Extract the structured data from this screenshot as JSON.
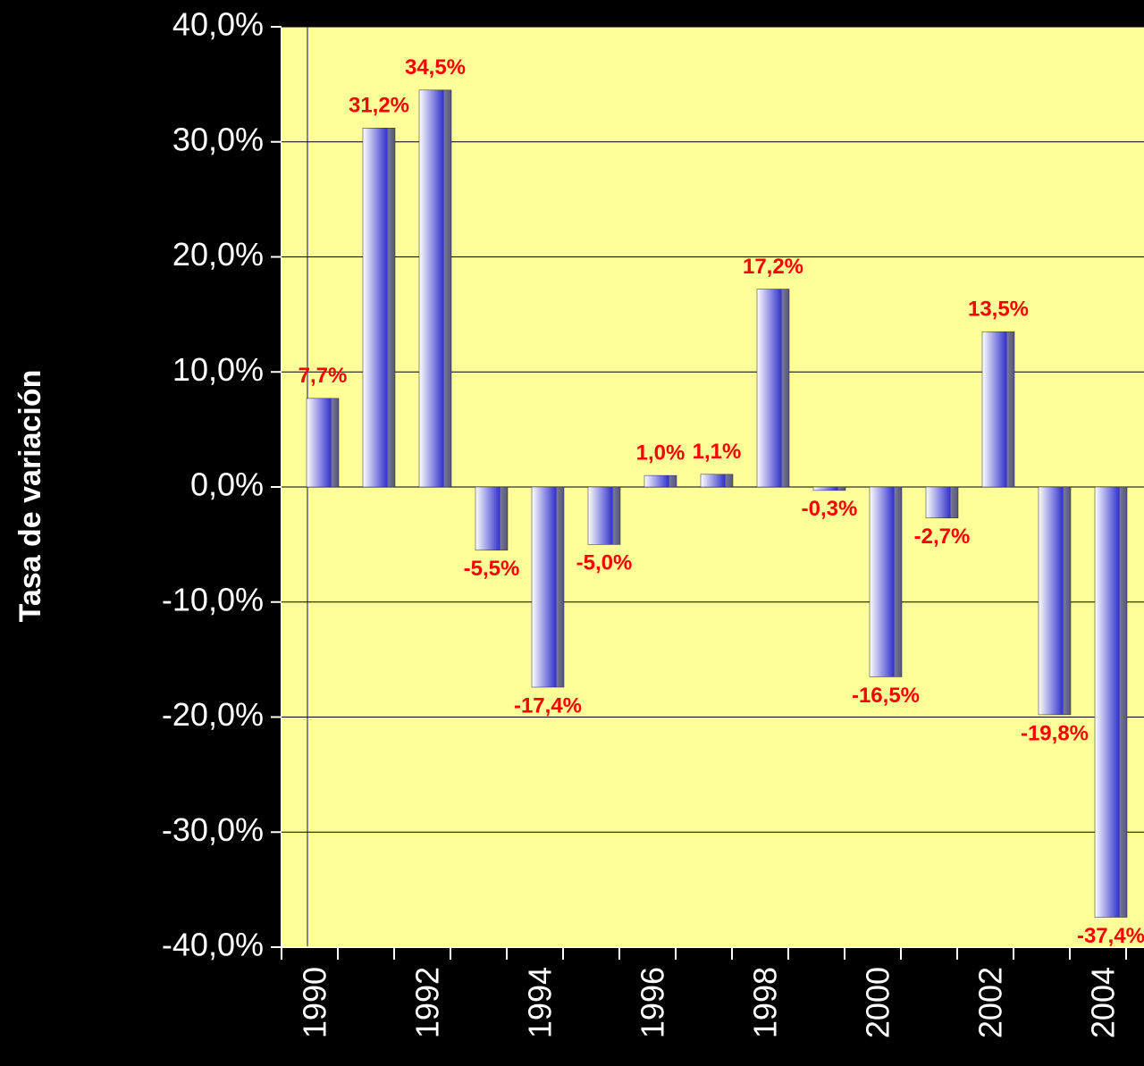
{
  "chart_data": {
    "type": "bar",
    "y_axis_label": "Tasa de variación",
    "categories": [
      "1990",
      null,
      "1992",
      null,
      "1994",
      null,
      "1996",
      null,
      "1998",
      null,
      "2000",
      null,
      "2002",
      null,
      "2004"
    ],
    "values": [
      7.7,
      31.2,
      34.5,
      -5.5,
      -17.4,
      -5.0,
      1.0,
      1.1,
      17.2,
      -0.3,
      -16.5,
      -2.7,
      13.5,
      -19.8,
      -37.4
    ],
    "value_labels": [
      "7,7%",
      "31,2%",
      "34,5%",
      "-5,5%",
      "-17,4%",
      "-5,0%",
      "1,0%",
      "1,1%",
      "17,2%",
      "-0,3%",
      "-16,5%",
      "-2,7%",
      "13,5%",
      "-19,8%",
      "-37,4%"
    ],
    "color": "#3333cc",
    "label_color": "#ff0000",
    "ylim": [
      -40,
      40
    ],
    "yticks": [
      {
        "value": -40,
        "label": "-40,0%"
      },
      {
        "value": -30,
        "label": "-30,0%"
      },
      {
        "value": -20,
        "label": "-20,0%"
      },
      {
        "value": -10,
        "label": "-10,0%"
      },
      {
        "value": 0,
        "label": "0,0%"
      },
      {
        "value": 10,
        "label": "10,0%"
      },
      {
        "value": 20,
        "label": "20,0%"
      },
      {
        "value": 30,
        "label": "30,0%"
      },
      {
        "value": 40,
        "label": "40,0%"
      }
    ],
    "grid": true
  }
}
